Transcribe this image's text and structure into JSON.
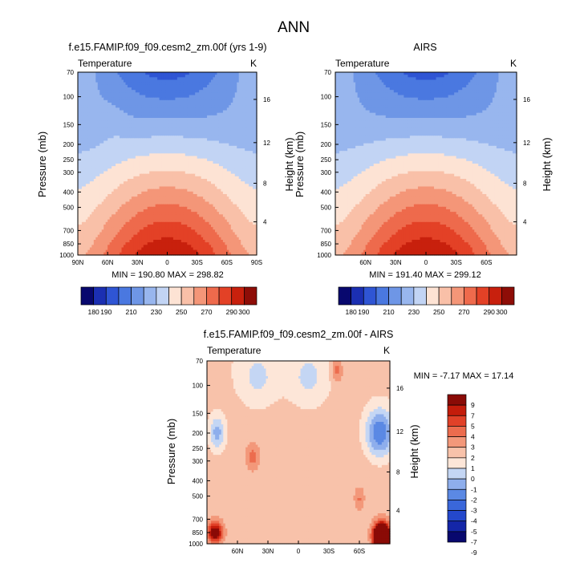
{
  "figure_title": "ANN",
  "chart_data": [
    {
      "type": "heatmap",
      "title": "f.e15.FAMIP.f09_f09.cesm2_zm.00f (yrs 1-9)",
      "left_subtitle": "Temperature",
      "right_subtitle": "K",
      "ylabel": "Pressure (mb)",
      "ylabel_right": "Height (km)",
      "x_ticks": [
        "90N",
        "60N",
        "30N",
        "0",
        "30S",
        "60S",
        "90S"
      ],
      "y_ticks": [
        "70",
        "100",
        "150",
        "200",
        "250",
        "300",
        "400",
        "500",
        "700",
        "850",
        "1000"
      ],
      "y_right_ticks": [
        "16",
        "12",
        "8",
        "4"
      ],
      "xlim": [
        -90,
        90
      ],
      "ylim": [
        1000,
        70
      ],
      "y_scale": "log",
      "stats": "MIN = 190.80   MAX = 298.82",
      "min": 190.8,
      "max": 298.82,
      "levels": [
        180,
        190,
        200,
        210,
        220,
        230,
        240,
        250,
        260,
        270,
        280,
        290,
        300
      ],
      "colorbar_labels": [
        "180",
        "190",
        "210",
        "230",
        "250",
        "270",
        "290",
        "300"
      ]
    },
    {
      "type": "heatmap",
      "title": "AIRS",
      "left_subtitle": "Temperature",
      "right_subtitle": "K",
      "ylabel": "Pressure (mb)",
      "ylabel_right": "Height (km)",
      "x_ticks": [
        "60N",
        "30N",
        "0",
        "30S",
        "60S"
      ],
      "y_ticks": [
        "70",
        "100",
        "150",
        "200",
        "250",
        "300",
        "400",
        "500",
        "700",
        "850",
        "1000"
      ],
      "y_right_ticks": [
        "16",
        "12",
        "8",
        "4"
      ],
      "xlim": [
        -90,
        90
      ],
      "ylim": [
        1000,
        70
      ],
      "y_scale": "log",
      "stats": "MIN = 191.40   MAX = 299.12",
      "min": 191.4,
      "max": 299.12,
      "levels": [
        180,
        190,
        200,
        210,
        220,
        230,
        240,
        250,
        260,
        270,
        280,
        290,
        300
      ],
      "colorbar_labels": [
        "180",
        "190",
        "210",
        "230",
        "250",
        "270",
        "290",
        "300"
      ]
    },
    {
      "type": "heatmap",
      "title": "f.e15.FAMIP.f09_f09.cesm2_zm.00f - AIRS",
      "left_subtitle": "Temperature",
      "right_subtitle": "K",
      "ylabel": "Pressure (mb)",
      "ylabel_right": "Height (km)",
      "x_ticks": [
        "60N",
        "30N",
        "0",
        "30S",
        "60S"
      ],
      "y_ticks": [
        "70",
        "100",
        "150",
        "200",
        "250",
        "300",
        "400",
        "500",
        "700",
        "850",
        "1000"
      ],
      "y_right_ticks": [
        "16",
        "12",
        "8",
        "4"
      ],
      "xlim": [
        -90,
        90
      ],
      "ylim": [
        1000,
        70
      ],
      "y_scale": "log",
      "stats": "MIN =  -7.17   MAX =  17.14",
      "min": -7.17,
      "max": 17.14,
      "levels": [
        -9,
        -7,
        -5,
        -4,
        -3,
        -2,
        -1,
        0,
        1,
        2,
        3,
        4,
        5,
        7,
        9
      ],
      "colorbar_labels": [
        "9",
        "7",
        "5",
        "4",
        "3",
        "2",
        "1",
        "0",
        "-1",
        "-2",
        "-3",
        "-4",
        "-5",
        "-7",
        "-9"
      ]
    }
  ],
  "colors": {
    "abs_palette": [
      "#08086e",
      "#1b2fb2",
      "#2f55d4",
      "#4a78e0",
      "#6e96e6",
      "#98b6ee",
      "#c2d4f4",
      "#fde3d4",
      "#f9c0a8",
      "#f49678",
      "#ee6a4c",
      "#e34126",
      "#c8200d",
      "#8e0d07"
    ],
    "diff_palette": [
      "#08086e",
      "#1426a8",
      "#2448cc",
      "#3a67da",
      "#5b89e4",
      "#8eaeec",
      "#c4d6f4",
      "#fde6d8",
      "#f8c2aa",
      "#f3987a",
      "#ec6c4e",
      "#e14128",
      "#c41c0b",
      "#8a0b06"
    ]
  }
}
